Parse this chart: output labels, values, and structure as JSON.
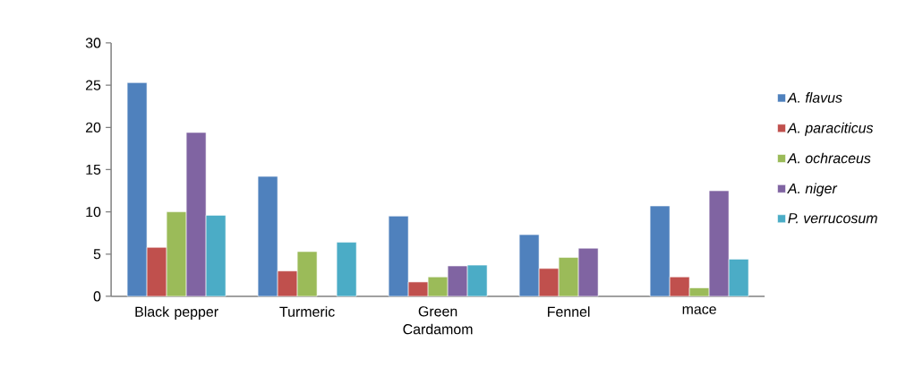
{
  "chart_data": {
    "type": "bar",
    "categories": [
      "Black pepper",
      "Turmeric",
      "Green Cardamom",
      "Fennel",
      "mace"
    ],
    "series": [
      {
        "name": "A. flavus",
        "color": "#4f81bd",
        "values": [
          25.3,
          14.2,
          9.5,
          7.3,
          10.7
        ]
      },
      {
        "name": "A. paraciticus",
        "color": "#c0504d",
        "values": [
          5.8,
          3.0,
          1.7,
          3.3,
          2.3
        ]
      },
      {
        "name": "A. ochraceus",
        "color": "#9bbb59",
        "values": [
          10.0,
          5.3,
          2.3,
          4.6,
          1.0
        ]
      },
      {
        "name": "A. niger",
        "color": "#8064a2",
        "values": [
          19.4,
          null,
          3.6,
          5.7,
          12.5
        ]
      },
      {
        "name": "P. verrucosum",
        "color": "#4bacc6",
        "values": [
          9.6,
          6.4,
          3.7,
          null,
          4.4
        ]
      }
    ],
    "ylim": [
      0,
      30
    ],
    "yticks": [
      0,
      5,
      10,
      15,
      20,
      25,
      30
    ],
    "legend": "right"
  }
}
